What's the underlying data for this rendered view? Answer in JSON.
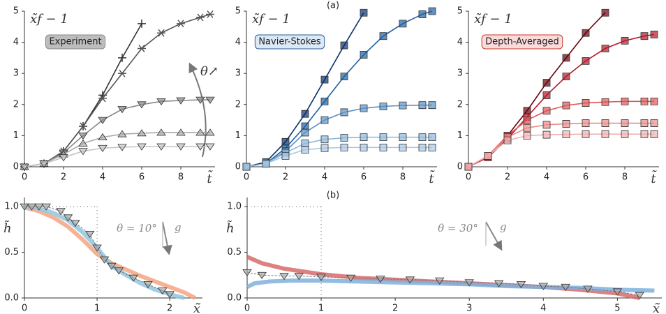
{
  "panel_labels": [
    "(a)",
    "(b)"
  ],
  "chart_data": [
    {
      "type": "line",
      "y_label": "x̃f − 1",
      "x_label": "t̃",
      "label": "Experiment",
      "annotation": "θ↗",
      "x": [
        0,
        1,
        2,
        3,
        4,
        5,
        6,
        7,
        8,
        9,
        9.5
      ],
      "xlim": [
        0,
        9.75
      ],
      "ylim": [
        0,
        5
      ],
      "xticks": [
        0,
        2,
        4,
        6,
        8
      ],
      "yticks": [
        0,
        1,
        2,
        3,
        4,
        5
      ],
      "series": [
        {
          "color": "#333333",
          "marker": "plus",
          "values": [
            0,
            0.1,
            0.5,
            1.3,
            2.3,
            3.5,
            4.6,
            null,
            null,
            null,
            null
          ]
        },
        {
          "color": "#555555",
          "marker": "star",
          "values": [
            0,
            0.1,
            0.5,
            1.3,
            2.2,
            3.0,
            3.8,
            4.3,
            4.6,
            4.8,
            4.9
          ]
        },
        {
          "color": "#888888",
          "marker": "down-triangle",
          "values": [
            0,
            0.1,
            0.45,
            1.0,
            1.5,
            1.85,
            2.0,
            2.1,
            2.13,
            2.15,
            2.15
          ]
        },
        {
          "color": "#aaaaaa",
          "marker": "up-triangle",
          "values": [
            0,
            0.1,
            0.4,
            0.75,
            0.95,
            1.05,
            1.08,
            1.1,
            1.1,
            1.1,
            1.1
          ]
        },
        {
          "color": "#c4c4c4",
          "marker": "down-triangle",
          "values": [
            0,
            0.1,
            0.3,
            0.5,
            0.6,
            0.63,
            0.65,
            0.65,
            0.65,
            0.65,
            0.65
          ]
        }
      ]
    },
    {
      "type": "line",
      "y_label": "x̃f − 1",
      "x_label": "t̃",
      "label": "Navier-Stokes",
      "x": [
        0,
        1,
        2,
        3,
        4,
        5,
        6,
        7,
        8,
        9,
        9.5
      ],
      "xlim": [
        0,
        9.75
      ],
      "ylim": [
        0,
        5
      ],
      "xticks": [
        0,
        2,
        4,
        6,
        8
      ],
      "yticks": [
        0,
        1,
        2,
        3,
        4,
        5
      ],
      "series": [
        {
          "color": "#08306b",
          "marker": "square",
          "values": [
            0,
            0.15,
            0.8,
            1.7,
            2.8,
            3.9,
            4.95,
            null,
            null,
            null,
            null
          ]
        },
        {
          "color": "#1f5fa0",
          "marker": "square",
          "values": [
            0,
            0.1,
            0.6,
            1.3,
            2.1,
            2.9,
            3.6,
            4.2,
            4.6,
            4.9,
            5.0
          ]
        },
        {
          "color": "#5b93c7",
          "marker": "square",
          "values": [
            0,
            0.1,
            0.5,
            1.1,
            1.5,
            1.75,
            1.88,
            1.94,
            1.97,
            1.98,
            1.98
          ]
        },
        {
          "color": "#8cb8de",
          "marker": "square",
          "values": [
            0,
            0.1,
            0.45,
            0.75,
            0.88,
            0.93,
            0.95,
            0.95,
            0.95,
            0.95,
            0.95
          ]
        },
        {
          "color": "#a9c8e4",
          "marker": "square",
          "values": [
            0,
            0.1,
            0.35,
            0.55,
            0.6,
            0.62,
            0.62,
            0.62,
            0.62,
            0.62,
            0.62
          ]
        }
      ]
    },
    {
      "type": "line",
      "y_label": "x̃f − 1",
      "x_label": "t̃",
      "label": "Depth-Averaged",
      "x": [
        0,
        1,
        2,
        3,
        4,
        5,
        6,
        7,
        8,
        9,
        9.5
      ],
      "xlim": [
        0,
        9.75
      ],
      "ylim": [
        0,
        5
      ],
      "xticks": [
        0,
        2,
        4,
        6,
        8
      ],
      "yticks": [
        0,
        1,
        2,
        3,
        4,
        5
      ],
      "series": [
        {
          "color": "#67000d",
          "marker": "square",
          "values": [
            0,
            0.35,
            1.0,
            1.8,
            2.7,
            3.5,
            4.3,
            4.95,
            null,
            null,
            null
          ]
        },
        {
          "color": "#b2182b",
          "marker": "square",
          "values": [
            0,
            0.3,
            0.9,
            1.6,
            2.3,
            2.9,
            3.4,
            3.8,
            4.05,
            4.2,
            4.25
          ]
        },
        {
          "color": "#e05555",
          "marker": "square",
          "values": [
            0,
            0.35,
            1.0,
            1.5,
            1.8,
            1.97,
            2.05,
            2.08,
            2.1,
            2.1,
            2.1
          ]
        },
        {
          "color": "#ec8a8a",
          "marker": "square",
          "values": [
            0,
            0.35,
            0.95,
            1.25,
            1.35,
            1.38,
            1.4,
            1.4,
            1.4,
            1.4,
            1.4
          ]
        },
        {
          "color": "#f2b0b0",
          "marker": "square",
          "values": [
            0,
            0.35,
            0.85,
            1.0,
            1.03,
            1.04,
            1.05,
            1.05,
            1.05,
            1.05,
            1.05
          ]
        }
      ]
    },
    {
      "type": "profile",
      "y_label": "h̃",
      "x_label": "x̃",
      "annotation": "θ = 10°",
      "gravity_label": "g",
      "xlim": [
        0,
        2.45
      ],
      "ylim": [
        0,
        1.1
      ],
      "xticks": [
        0,
        1,
        2
      ],
      "yticks": [
        {
          "value": 0,
          "label": "0.0"
        },
        {
          "value": 0.5,
          "label": "0.5"
        },
        {
          "value": 1,
          "label": "1.0"
        }
      ],
      "reference_lines": {
        "x": 1,
        "y": 1
      },
      "series": [
        {
          "color": "#f4a582",
          "width": 6,
          "x": [
            0,
            0.2,
            0.4,
            0.6,
            0.8,
            1.0,
            1.2,
            1.4,
            1.6,
            1.8,
            2.0,
            2.2,
            2.35
          ],
          "values": [
            0.99,
            0.95,
            0.88,
            0.78,
            0.64,
            0.48,
            0.38,
            0.31,
            0.24,
            0.18,
            0.12,
            0.06,
            0
          ]
        },
        {
          "color": "#92c5de",
          "width": 6,
          "x": [
            0,
            0.2,
            0.4,
            0.6,
            0.8,
            1.0,
            1.2,
            1.4,
            1.6,
            1.8,
            2.0,
            2.2
          ],
          "values": [
            1,
            0.98,
            0.93,
            0.85,
            0.72,
            0.55,
            0.35,
            0.25,
            0.16,
            0.09,
            0.04,
            0
          ]
        },
        {
          "color": "#777777",
          "marker": "down-triangle",
          "width": 1,
          "x": [
            0,
            0.1,
            0.2,
            0.3,
            0.5,
            0.6,
            0.7,
            0.9,
            1.0,
            1.1,
            1.2,
            1.3,
            1.5,
            1.7,
            1.9,
            2.0
          ],
          "values": [
            1,
            1,
            1,
            1,
            0.95,
            0.88,
            0.82,
            0.7,
            0.55,
            0.42,
            0.35,
            0.3,
            0.22,
            0.15,
            0.08,
            0.04
          ]
        }
      ]
    },
    {
      "type": "profile",
      "y_label": "h̃",
      "x_label": "x̃",
      "annotation": "θ = 30°",
      "gravity_label": "g",
      "xlim": [
        0,
        5.6
      ],
      "ylim": [
        0,
        1.1
      ],
      "xticks": [
        0,
        1,
        2,
        3,
        4,
        5
      ],
      "yticks": [
        {
          "value": 0,
          "label": "0.0"
        },
        {
          "value": 0.5,
          "label": "0.5"
        },
        {
          "value": 1,
          "label": "1.0"
        }
      ],
      "reference_lines": {
        "x": 1,
        "y": 1
      },
      "series": [
        {
          "color": "#d66a6a",
          "width": 6,
          "x": [
            0,
            0.2,
            0.5,
            1,
            1.5,
            2,
            2.5,
            3,
            3.5,
            4,
            4.5,
            5,
            5.3
          ],
          "values": [
            0.45,
            0.38,
            0.32,
            0.26,
            0.22,
            0.2,
            0.18,
            0.16,
            0.14,
            0.12,
            0.09,
            0.05,
            0
          ]
        },
        {
          "color": "#7fb0dc",
          "width": 6,
          "x": [
            0,
            0.1,
            0.3,
            0.6,
            1,
            1.5,
            2,
            2.5,
            3,
            3.5,
            4,
            4.5,
            5,
            5.5
          ],
          "values": [
            0.12,
            0.16,
            0.18,
            0.19,
            0.19,
            0.18,
            0.17,
            0.16,
            0.15,
            0.13,
            0.12,
            0.11,
            0.09,
            0.08
          ]
        },
        {
          "color": "#777777",
          "marker": "down-triangle",
          "width": 1,
          "x": [
            0,
            0.2,
            0.5,
            0.7,
            1.0,
            1.4,
            1.8,
            2.2,
            2.6,
            3.0,
            3.4,
            3.7,
            4.0,
            4.3,
            4.6,
            5.0,
            5.3
          ],
          "values": [
            0.28,
            0.25,
            0.24,
            0.24,
            0.23,
            0.22,
            0.21,
            0.2,
            0.19,
            0.17,
            0.16,
            0.15,
            0.13,
            0.12,
            0.1,
            0.07,
            0.03
          ]
        }
      ]
    }
  ]
}
